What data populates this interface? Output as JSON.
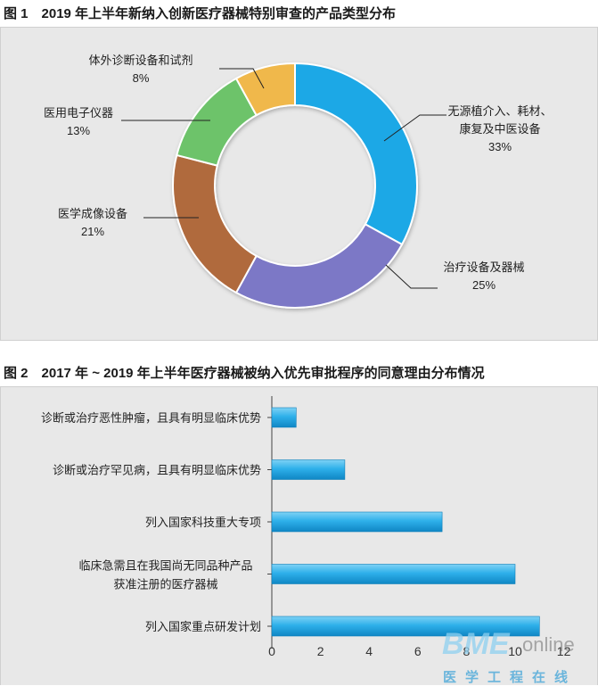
{
  "figure1": {
    "title": "图 1　2019 年上半年新纳入创新医疗器械特别审查的产品类型分布"
  },
  "figure2": {
    "title": "图 2　2017 年 ~ 2019 年上半年医疗器械被纳入优先审批程序的同意理由分布情况"
  },
  "chart_data": [
    {
      "type": "pie",
      "style": "donut",
      "slices": [
        {
          "label": [
            "无源植介入、耗材、",
            "康复及中医设备"
          ],
          "value": 33,
          "value_text": "33%",
          "color": "#1fa8e6"
        },
        {
          "label": [
            "治疗设备及器械"
          ],
          "value": 25,
          "value_text": "25%",
          "color": "#7b78c6"
        },
        {
          "label": [
            "医学成像设备"
          ],
          "value": 21,
          "value_text": "21%",
          "color": "#b06a3e"
        },
        {
          "label": [
            "医用电子仪器"
          ],
          "value": 13,
          "value_text": "13%",
          "color": "#6dc36b"
        },
        {
          "label": [
            "体外诊断设备和试剂"
          ],
          "value": 8,
          "value_text": "8%",
          "color": "#f0b84c"
        }
      ],
      "legend": "none"
    },
    {
      "type": "bar",
      "orientation": "horizontal",
      "categories": [
        [
          "诊断或治疗恶性肿瘤，且具有明显临床优势"
        ],
        [
          "诊断或治疗罕见病，且具有明显临床优势"
        ],
        [
          "列入国家科技重大专项"
        ],
        [
          "临床急需且在我国尚无同品种产品",
          "获准注册的医疗器械"
        ],
        [
          "列入国家重点研发计划"
        ]
      ],
      "values": [
        1,
        3,
        7,
        10,
        11
      ],
      "xlim": [
        0,
        12
      ],
      "xticks": [
        0,
        2,
        4,
        6,
        8,
        10,
        12
      ],
      "bar_color": "#1fa8e6",
      "grid": false
    }
  ],
  "watermark": {
    "main": "BME",
    "sub": "online",
    "cn": "医学工程在线"
  }
}
